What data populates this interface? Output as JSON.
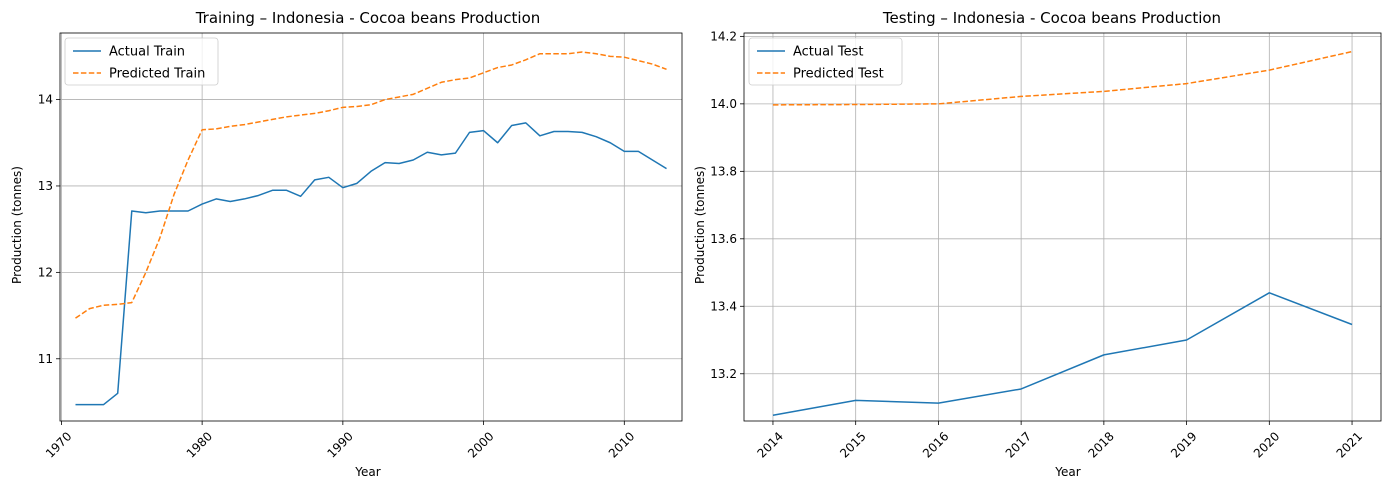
{
  "colors": {
    "actual": "#1f77b4",
    "predicted": "#ff7f0e",
    "grid": "#b0b0b0"
  },
  "chart_data": [
    {
      "type": "line",
      "title": "Training – Indonesia - Cocoa beans Production",
      "xlabel": "Year",
      "ylabel": "Production (tonnes)",
      "xlim": [
        1969.9,
        2014.1
      ],
      "ylim": [
        10.28,
        14.77
      ],
      "xticks": [
        1970,
        1980,
        1990,
        2000,
        2010
      ],
      "yticks": [
        11,
        12,
        13,
        14
      ],
      "legend_loc": "upper left",
      "x": [
        1971,
        1972,
        1973,
        1974,
        1975,
        1976,
        1977,
        1978,
        1979,
        1980,
        1981,
        1982,
        1983,
        1984,
        1985,
        1986,
        1987,
        1988,
        1989,
        1990,
        1991,
        1992,
        1993,
        1994,
        1995,
        1996,
        1997,
        1998,
        1999,
        2000,
        2001,
        2002,
        2003,
        2004,
        2005,
        2006,
        2007,
        2008,
        2009,
        2010,
        2011,
        2012,
        2013
      ],
      "series": [
        {
          "name": "Actual Train",
          "style": "solid",
          "values": [
            10.47,
            10.47,
            10.47,
            10.6,
            12.71,
            12.69,
            12.71,
            12.71,
            12.71,
            12.79,
            12.85,
            12.82,
            12.85,
            12.89,
            12.95,
            12.95,
            12.88,
            13.07,
            13.1,
            12.98,
            13.03,
            13.17,
            13.27,
            13.26,
            13.3,
            13.39,
            13.36,
            13.38,
            13.62,
            13.64,
            13.5,
            13.7,
            13.73,
            13.58,
            13.63,
            13.63,
            13.62,
            13.57,
            13.5,
            13.4,
            13.4,
            13.3,
            13.2
          ]
        },
        {
          "name": "Predicted Train",
          "style": "dashed",
          "values": [
            11.47,
            11.58,
            11.62,
            11.63,
            11.65,
            12.0,
            12.4,
            12.9,
            13.3,
            13.65,
            13.66,
            13.69,
            13.71,
            13.74,
            13.77,
            13.8,
            13.82,
            13.84,
            13.87,
            13.91,
            13.92,
            13.94,
            14.0,
            14.03,
            14.06,
            14.13,
            14.2,
            14.23,
            14.25,
            14.31,
            14.37,
            14.4,
            14.46,
            14.53,
            14.53,
            14.53,
            14.55,
            14.53,
            14.5,
            14.49,
            14.45,
            14.41,
            14.35
          ]
        }
      ]
    },
    {
      "type": "line",
      "title": "Testing – Indonesia - Cocoa beans Production",
      "xlabel": "Year",
      "ylabel": "Production (tonnes)",
      "xlim": [
        2013.65,
        2021.35
      ],
      "ylim": [
        13.06,
        14.21
      ],
      "xticks": [
        2014,
        2015,
        2016,
        2017,
        2018,
        2019,
        2020,
        2021
      ],
      "yticks": [
        13.2,
        13.4,
        13.6,
        13.8,
        14.0,
        14.2
      ],
      "ytick_labels": [
        "13.2",
        "13.4",
        "13.6",
        "13.8",
        "14.0",
        "14.2"
      ],
      "legend_loc": "upper left",
      "x": [
        2014,
        2015,
        2016,
        2017,
        2018,
        2019,
        2020,
        2021
      ],
      "series": [
        {
          "name": "Actual Test",
          "style": "solid",
          "values": [
            13.077,
            13.121,
            13.113,
            13.155,
            13.256,
            13.3,
            13.44,
            13.346
          ]
        },
        {
          "name": "Predicted Test",
          "style": "dashed",
          "values": [
            13.997,
            13.998,
            14.0,
            14.022,
            14.037,
            14.06,
            14.1,
            14.155
          ]
        }
      ]
    }
  ]
}
